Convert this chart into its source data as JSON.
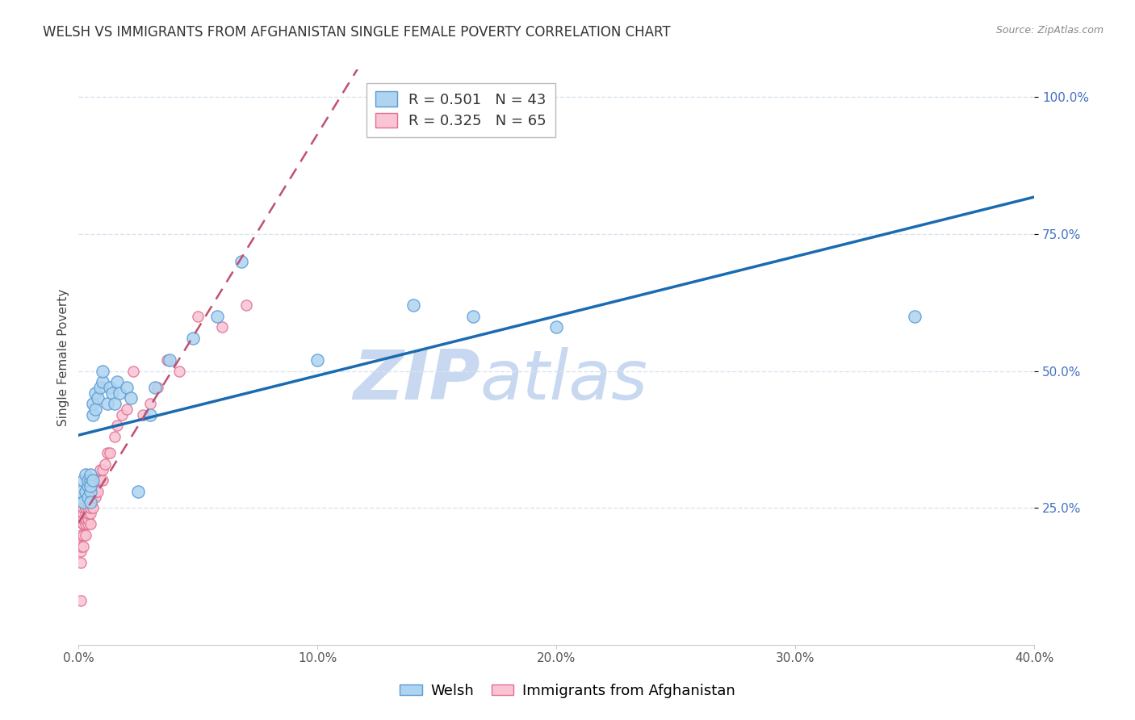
{
  "title": "WELSH VS IMMIGRANTS FROM AFGHANISTAN SINGLE FEMALE POVERTY CORRELATION CHART",
  "source": "Source: ZipAtlas.com",
  "ylabel": "Single Female Poverty",
  "xlim": [
    0.0,
    0.4
  ],
  "ylim": [
    0.0,
    1.05
  ],
  "xtick_vals": [
    0.0,
    0.1,
    0.2,
    0.3,
    0.4
  ],
  "ytick_vals_right": [
    0.25,
    0.5,
    0.75,
    1.0
  ],
  "welsh_color": "#aed4f0",
  "welsh_edge_color": "#5b9bd5",
  "afghan_color": "#f9c4d4",
  "afghan_edge_color": "#e07090",
  "trend_welsh_color": "#1a6bb0",
  "trend_afghan_color": "#c05070",
  "trend_afghan_dash": true,
  "watermark_text": "ZIPatlas",
  "watermark_color": "#c8d8f0",
  "legend_welsh_label": "Welsh",
  "legend_afghan_label": "Immigrants from Afghanistan",
  "R_welsh": "0.501",
  "N_welsh": "43",
  "R_afghan": "0.325",
  "N_afghan": "65",
  "welsh_x": [
    0.001,
    0.001,
    0.002,
    0.002,
    0.003,
    0.003,
    0.004,
    0.004,
    0.004,
    0.005,
    0.005,
    0.005,
    0.005,
    0.006,
    0.006,
    0.006,
    0.007,
    0.007,
    0.008,
    0.009,
    0.01,
    0.01,
    0.012,
    0.013,
    0.014,
    0.015,
    0.016,
    0.017,
    0.02,
    0.022,
    0.025,
    0.03,
    0.032,
    0.038,
    0.048,
    0.058,
    0.068,
    0.1,
    0.14,
    0.165,
    0.2,
    0.35,
    0.005
  ],
  "welsh_y": [
    0.27,
    0.28,
    0.26,
    0.3,
    0.28,
    0.31,
    0.29,
    0.3,
    0.27,
    0.3,
    0.31,
    0.28,
    0.29,
    0.3,
    0.42,
    0.44,
    0.43,
    0.46,
    0.45,
    0.47,
    0.48,
    0.5,
    0.44,
    0.47,
    0.46,
    0.44,
    0.48,
    0.46,
    0.47,
    0.45,
    0.28,
    0.42,
    0.47,
    0.52,
    0.56,
    0.6,
    0.7,
    0.52,
    0.62,
    0.6,
    0.58,
    0.6,
    0.26
  ],
  "afghan_x": [
    0.001,
    0.001,
    0.001,
    0.001,
    0.001,
    0.002,
    0.002,
    0.002,
    0.002,
    0.002,
    0.002,
    0.002,
    0.002,
    0.002,
    0.003,
    0.003,
    0.003,
    0.003,
    0.003,
    0.003,
    0.003,
    0.003,
    0.003,
    0.004,
    0.004,
    0.004,
    0.004,
    0.004,
    0.004,
    0.005,
    0.005,
    0.005,
    0.005,
    0.005,
    0.005,
    0.005,
    0.006,
    0.006,
    0.006,
    0.006,
    0.007,
    0.007,
    0.007,
    0.008,
    0.008,
    0.009,
    0.009,
    0.01,
    0.01,
    0.011,
    0.012,
    0.013,
    0.015,
    0.016,
    0.018,
    0.02,
    0.023,
    0.027,
    0.03,
    0.033,
    0.037,
    0.042,
    0.05,
    0.06,
    0.07
  ],
  "afghan_y": [
    0.08,
    0.15,
    0.17,
    0.18,
    0.2,
    0.18,
    0.2,
    0.22,
    0.22,
    0.22,
    0.23,
    0.24,
    0.24,
    0.25,
    0.2,
    0.22,
    0.23,
    0.24,
    0.25,
    0.25,
    0.26,
    0.27,
    0.28,
    0.22,
    0.23,
    0.24,
    0.25,
    0.26,
    0.27,
    0.22,
    0.24,
    0.25,
    0.26,
    0.27,
    0.28,
    0.3,
    0.25,
    0.27,
    0.28,
    0.3,
    0.27,
    0.28,
    0.3,
    0.28,
    0.3,
    0.3,
    0.32,
    0.3,
    0.32,
    0.33,
    0.35,
    0.35,
    0.38,
    0.4,
    0.42,
    0.43,
    0.5,
    0.42,
    0.44,
    0.47,
    0.52,
    0.5,
    0.6,
    0.58,
    0.62
  ],
  "marker_size_welsh": 120,
  "marker_size_afghan": 90,
  "grid_color": "#d8e4f0",
  "bg_color": "#ffffff",
  "title_fontsize": 12,
  "axis_label_fontsize": 11,
  "tick_fontsize": 11,
  "legend_fontsize": 13,
  "tick_color_right": "#4472c4"
}
